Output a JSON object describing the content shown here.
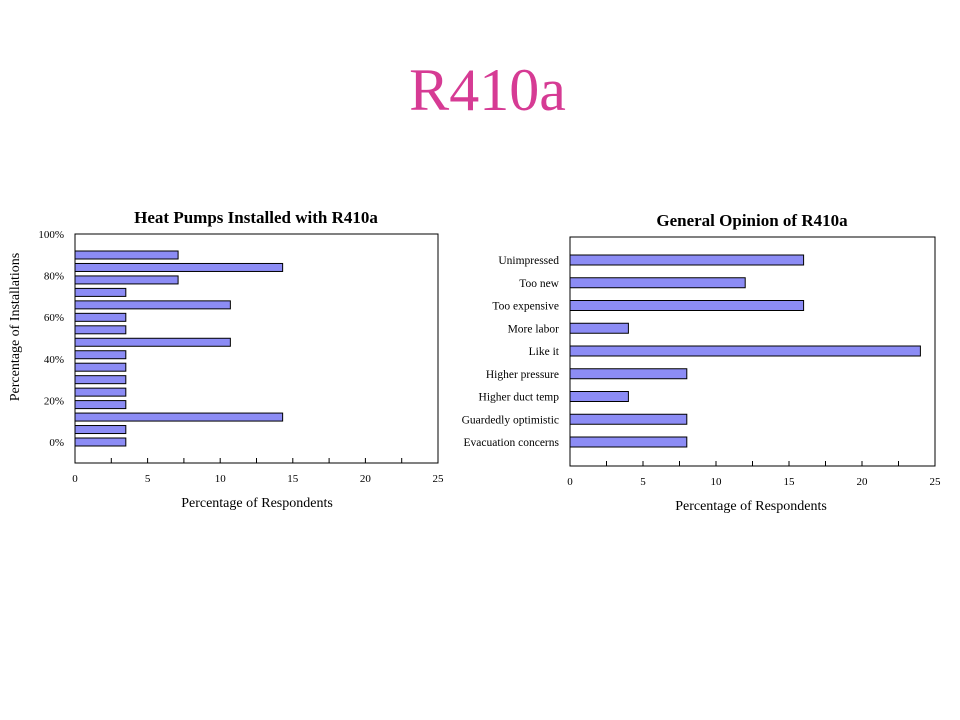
{
  "slide": {
    "title": "R410a"
  },
  "colors": {
    "title": "#d63b94",
    "bar_fill": "#8c8cf5",
    "bar_stroke": "#000000"
  },
  "chart_data": [
    {
      "type": "bar",
      "orientation": "horizontal",
      "title": "Heat Pumps Installed with R410a",
      "xlabel": "Percentage of Respondents",
      "ylabel": "Percentage of Installations",
      "xlim": [
        0,
        25
      ],
      "x_ticks": [
        "0",
        "5",
        "10",
        "15",
        "20",
        "25"
      ],
      "y_tick_labels": [
        "0%",
        "20%",
        "40%",
        "60%",
        "80%",
        "100%"
      ],
      "values": [
        3.5,
        3.5,
        14.3,
        3.5,
        3.5,
        3.5,
        3.5,
        3.5,
        10.7,
        3.5,
        3.5,
        10.7,
        3.5,
        7.1,
        14.3,
        7.1
      ],
      "grid": false
    },
    {
      "type": "bar",
      "orientation": "horizontal",
      "title": "General Opinion of R410a",
      "xlabel": "Percentage of Respondents",
      "ylabel": "",
      "xlim": [
        0,
        25
      ],
      "x_ticks": [
        "0",
        "5",
        "10",
        "15",
        "20",
        "25"
      ],
      "categories": [
        "Evacuation concerns",
        "Guardedly optimistic",
        "Higher duct temp",
        "Higher pressure",
        "Like it",
        "More labor",
        "Too expensive",
        "Too new",
        "Unimpressed"
      ],
      "values": [
        8,
        8,
        4,
        8,
        24,
        4,
        16,
        12,
        16
      ],
      "grid": false
    }
  ]
}
